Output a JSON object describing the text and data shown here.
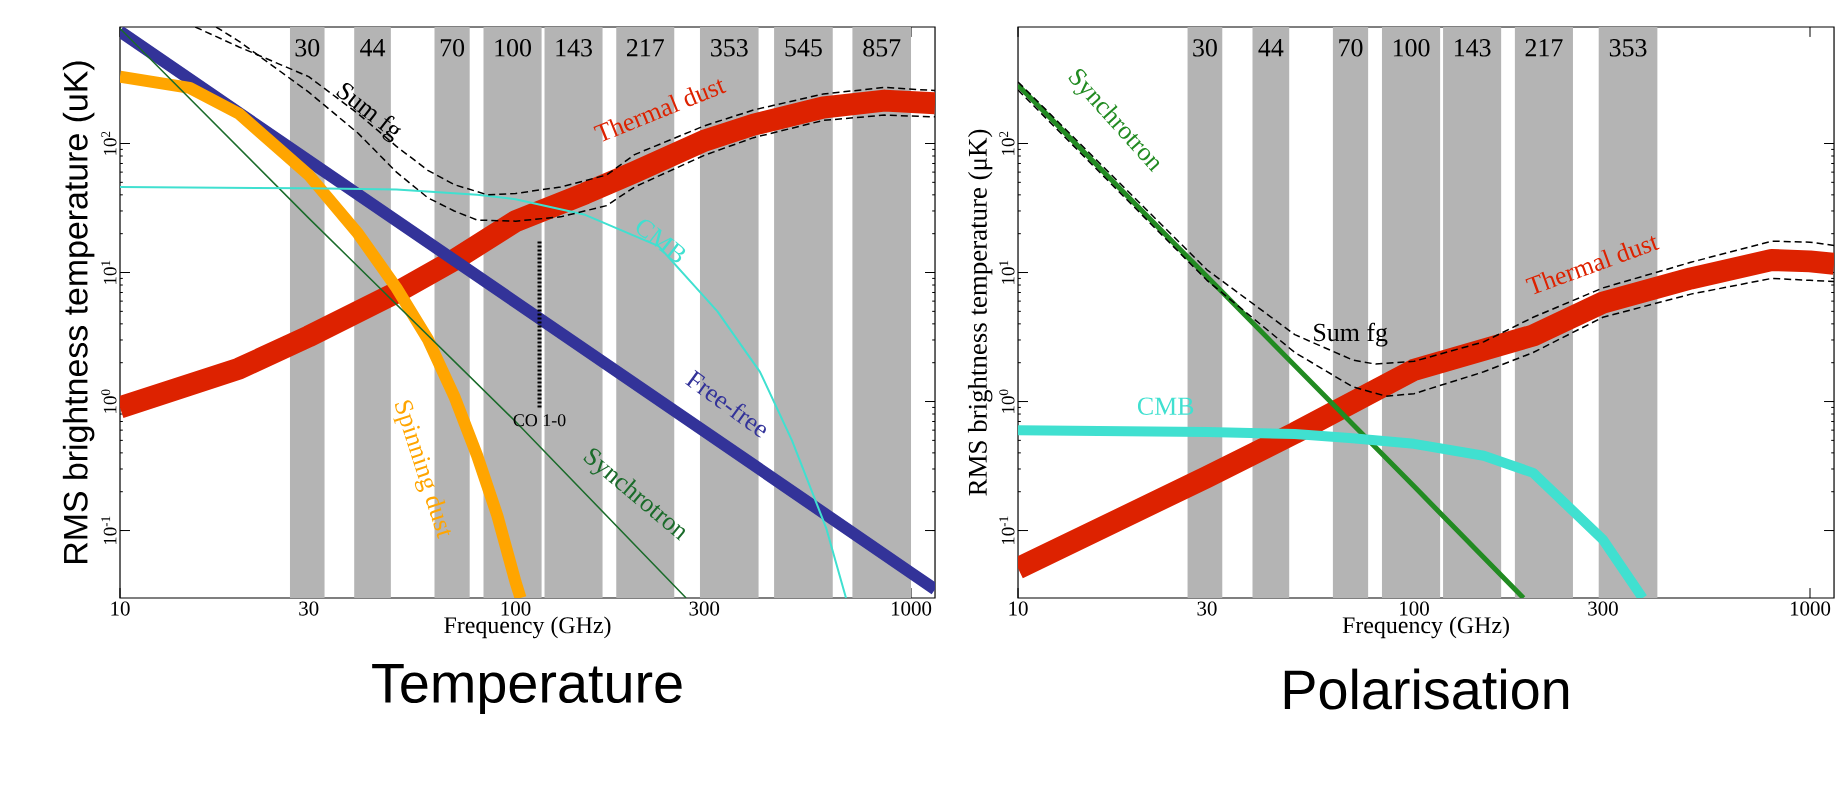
{
  "chart_data": [
    {
      "type": "line",
      "title": "Temperature",
      "xlabel": "Frequency (GHz)",
      "ylabel": "RMS brightness temperature (uK)",
      "log": "xy",
      "xlim": [
        10,
        1150
      ],
      "ylim": [
        0.03,
        800
      ],
      "xticks": [
        10,
        30,
        100,
        300,
        1000
      ],
      "yticks": [
        {
          "value": 0.1,
          "label": "10$^{-1}$"
        },
        {
          "value": 1,
          "label": "10$^{0}$"
        },
        {
          "value": 10,
          "label": "10$^{1}$"
        },
        {
          "value": 100,
          "label": "10$^{2}$"
        }
      ],
      "bands": [
        {
          "axis": "x",
          "from": 26.9,
          "to": 32.9,
          "label": "30",
          "color": "#b4b4b4"
        },
        {
          "axis": "x",
          "from": 39.1,
          "to": 48.4,
          "label": "44",
          "color": "#b4b4b4"
        },
        {
          "axis": "x",
          "from": 62.4,
          "to": 76.6,
          "label": "70",
          "color": "#b4b4b4"
        },
        {
          "axis": "x",
          "from": 83,
          "to": 116.4,
          "label": "100",
          "color": "#b4b4b4"
        },
        {
          "axis": "x",
          "from": 118.4,
          "to": 166,
          "label": "143",
          "color": "#b4b4b4"
        },
        {
          "axis": "x",
          "from": 179.8,
          "to": 252,
          "label": "217",
          "color": "#b4b4b4"
        },
        {
          "axis": "x",
          "from": 292.7,
          "to": 411.7,
          "label": "353",
          "color": "#b4b4b4"
        },
        {
          "axis": "x",
          "from": 450.6,
          "to": 634,
          "label": "545",
          "color": "#b4b4b4"
        },
        {
          "axis": "x",
          "from": 711,
          "to": 1000,
          "label": "857",
          "color": "#b4b4b4"
        }
      ],
      "series": [
        {
          "name": "Thermal dust",
          "color": "#dd2200",
          "x": [
            10,
            20,
            30,
            50,
            70,
            100,
            150,
            200,
            300,
            400,
            600,
            857,
            1150
          ],
          "values": [
            0.9,
            1.8,
            3.2,
            7,
            12.5,
            25,
            41,
            60,
            105,
            140,
            190,
            215,
            205
          ]
        },
        {
          "name": "Free-free",
          "color": "#333399",
          "x": [
            10,
            30,
            100,
            300,
            1000,
            1150
          ],
          "values": [
            740,
            73.6,
            5.9,
            0.59,
            0.047,
            0.035
          ]
        },
        {
          "name": "Spinning dust",
          "color": "#ffa500",
          "x": [
            10,
            15,
            20,
            30,
            40,
            50,
            60,
            70,
            80,
            90,
            100,
            103
          ],
          "values": [
            330,
            270,
            170,
            57,
            20,
            7.6,
            3.05,
            1.1,
            0.38,
            0.13,
            0.04,
            0.03
          ]
        },
        {
          "name": "Synchrotron",
          "color": "#1a6b2a",
          "x": [
            10,
            30,
            100,
            270
          ],
          "values": [
            780,
            26.4,
            0.7,
            0.03
          ]
        },
        {
          "name": "CMB",
          "color": "#40e0d0",
          "x": [
            10,
            30,
            50,
            80,
            100,
            150,
            230,
            324,
            415,
            500,
            610,
            685
          ],
          "values": [
            46,
            45,
            44,
            40,
            37,
            28,
            16,
            5,
            1.7,
            0.5,
            0.105,
            0.03
          ]
        },
        {
          "name": "Sum fg",
          "color": "#000000",
          "line_style": "dashed",
          "x": [
            15.5,
            20,
            30,
            40,
            50,
            60,
            70,
            85,
            100,
            130,
            170,
            200,
            300,
            400,
            600,
            857,
            1150
          ],
          "values": [
            800,
            560,
            330,
            170,
            95,
            62,
            48,
            40,
            41,
            46,
            57,
            82,
            137,
            182,
            242,
            272,
            257
          ]
        },
        {
          "color": "#000000",
          "line_style": "dashed",
          "x": [
            17.5,
            20,
            30,
            40,
            50,
            60,
            70,
            80,
            100,
            130,
            170,
            200,
            300,
            400,
            600,
            857,
            1150
          ],
          "values": [
            800,
            620,
            250,
            120,
            60,
            38,
            30,
            25.5,
            25,
            27,
            33,
            46,
            81,
            111,
            151,
            166,
            161
          ]
        },
        {
          "name": "CO 1-0",
          "color": "#000000",
          "line_style": "dotted",
          "x": [
            115,
            115
          ],
          "values": [
            0.9,
            18
          ]
        }
      ]
    },
    {
      "type": "line",
      "title": "Polarisation",
      "xlabel": "Frequency (GHz)",
      "ylabel": "RMS brightness temperature (μK)",
      "log": "xy",
      "xlim": [
        10,
        1150
      ],
      "ylim": [
        0.03,
        800
      ],
      "xticks": [
        10,
        30,
        100,
        300,
        1000
      ],
      "yticks": [
        {
          "value": 0.1,
          "label": "10$^{-1}$"
        },
        {
          "value": 1,
          "label": "10$^{0}$"
        },
        {
          "value": 10,
          "label": "10$^{1}$"
        },
        {
          "value": 100,
          "label": "10$^{2}$"
        }
      ],
      "bands": [
        {
          "axis": "x",
          "from": 26.8,
          "to": 32.8,
          "label": "30",
          "color": "#b4b4b4"
        },
        {
          "axis": "x",
          "from": 39.1,
          "to": 48.4,
          "label": "44",
          "color": "#b4b4b4"
        },
        {
          "axis": "x",
          "from": 62.4,
          "to": 76.6,
          "label": "70",
          "color": "#b4b4b4"
        },
        {
          "axis": "x",
          "from": 83,
          "to": 116.4,
          "label": "100",
          "color": "#b4b4b4"
        },
        {
          "axis": "x",
          "from": 118.4,
          "to": 166,
          "label": "143",
          "color": "#b4b4b4"
        },
        {
          "axis": "x",
          "from": 179.8,
          "to": 252,
          "label": "217",
          "color": "#b4b4b4"
        },
        {
          "axis": "x",
          "from": 292.7,
          "to": 411.7,
          "label": "353",
          "color": "#b4b4b4"
        }
      ],
      "series": [
        {
          "name": "Thermal dust",
          "color": "#dd2200",
          "x": [
            10,
            30,
            50,
            100,
            200,
            300,
            500,
            800,
            1000,
            1150
          ],
          "values": [
            0.051,
            0.26,
            0.57,
            1.76,
            3.25,
            5.85,
            9,
            12.5,
            12.2,
            11.7
          ]
        },
        {
          "name": "Synchrotron",
          "color": "#228b22",
          "x": [
            10,
            30,
            100,
            189
          ],
          "values": [
            283,
            9.3,
            0.22,
            0.03
          ]
        },
        {
          "name": "CMB",
          "color": "#40e0d0",
          "x": [
            10,
            30,
            50,
            70,
            100,
            150,
            200,
            300,
            378
          ],
          "values": [
            0.6,
            0.58,
            0.56,
            0.52,
            0.47,
            0.38,
            0.28,
            0.085,
            0.03
          ]
        },
        {
          "name": "Sum fg",
          "color": "#000000",
          "line_style": "dashed",
          "x": [
            10,
            30,
            50,
            70,
            80,
            100,
            150,
            200,
            300,
            500,
            800,
            1000,
            1150
          ],
          "values": [
            300,
            10.5,
            3.3,
            2.1,
            1.95,
            2.05,
            2.9,
            4.5,
            7.6,
            12,
            17.5,
            17.2,
            16.2
          ]
        },
        {
          "color": "#000000",
          "line_style": "dashed",
          "x": [
            10,
            30,
            50,
            70,
            85,
            100,
            150,
            200,
            300,
            500,
            800,
            1000,
            1150
          ],
          "values": [
            260,
            8.7,
            2.4,
            1.3,
            1.1,
            1.15,
            1.7,
            2.4,
            4.5,
            6.8,
            9,
            8.7,
            8.5
          ]
        }
      ]
    }
  ]
}
